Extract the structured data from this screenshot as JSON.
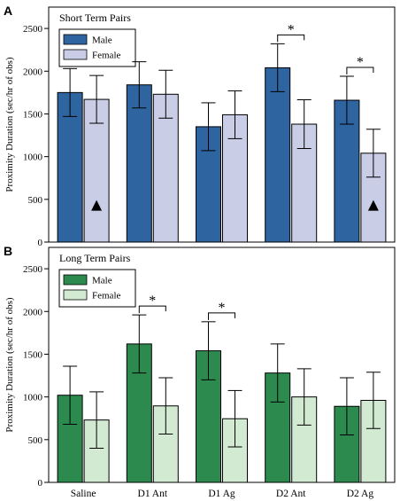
{
  "chart_data": [
    {
      "type": "bar",
      "panel_label": "A",
      "title": "Short Term Pairs",
      "ylabel": "Proximity Duration (sec/hr of obs)",
      "ylim": [
        0,
        2750
      ],
      "yticks": [
        0,
        500,
        1000,
        1500,
        2000,
        2500
      ],
      "categories": [
        "Saline",
        "D1 Ant",
        "D1 Ag",
        "D2 Ant",
        "D2 Ag"
      ],
      "show_category_labels": false,
      "legend_position": "top-left",
      "series": [
        {
          "name": "Male",
          "color": "#2e64a0",
          "values": [
            1750,
            1840,
            1350,
            2040,
            1660
          ],
          "errors": [
            280,
            270,
            280,
            280,
            280
          ]
        },
        {
          "name": "Female",
          "color": "#c9cde6",
          "values": [
            1670,
            1730,
            1490,
            1380,
            1040
          ],
          "errors": [
            280,
            280,
            280,
            285,
            280
          ]
        }
      ],
      "significance_brackets": [
        {
          "category": 3,
          "label": "*"
        },
        {
          "category": 4,
          "label": "*"
        }
      ],
      "triangle_markers": [
        {
          "category": 0,
          "series": 1,
          "value": 430
        },
        {
          "category": 4,
          "series": 1,
          "value": 430
        }
      ]
    },
    {
      "type": "bar",
      "panel_label": "B",
      "title": "Long Term Pairs",
      "ylabel": "Proximity Duration (sec/hr of obs)",
      "ylim": [
        0,
        2750
      ],
      "yticks": [
        0,
        500,
        1000,
        1500,
        2000,
        2500
      ],
      "categories": [
        "Saline",
        "D1 Ant",
        "D1 Ag",
        "D2 Ant",
        "D2 Ag"
      ],
      "show_category_labels": true,
      "legend_position": "top-left",
      "series": [
        {
          "name": "Male",
          "color": "#2d8a4e",
          "values": [
            1020,
            1620,
            1540,
            1280,
            890
          ],
          "errors": [
            340,
            340,
            340,
            340,
            335
          ]
        },
        {
          "name": "Female",
          "color": "#d2e9d2",
          "values": [
            730,
            895,
            745,
            1000,
            960
          ],
          "errors": [
            330,
            330,
            330,
            330,
            330
          ]
        }
      ],
      "significance_brackets": [
        {
          "category": 1,
          "label": "*"
        },
        {
          "category": 2,
          "label": "*"
        }
      ],
      "triangle_markers": []
    }
  ]
}
